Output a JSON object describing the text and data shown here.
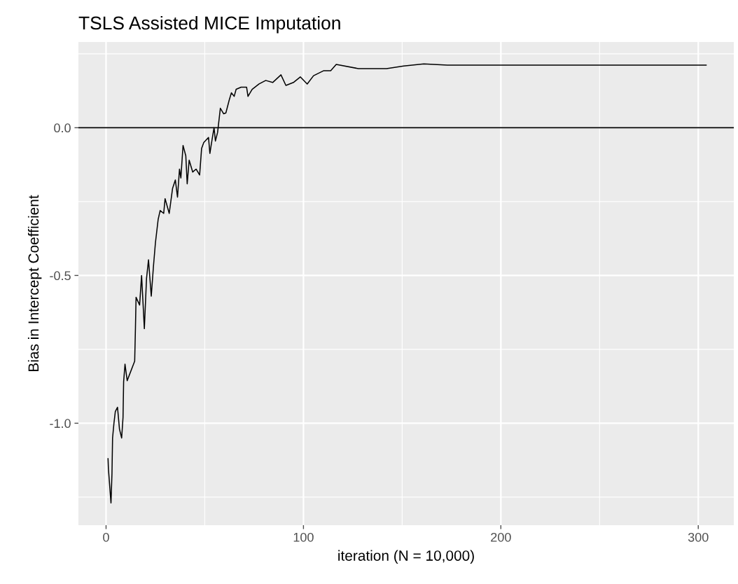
{
  "chart_data": {
    "type": "line",
    "title": "TSLS Assisted MICE Imputation",
    "xlabel": "iteration (N = 10,000)",
    "ylabel": "Bias in Intercept Coefficient",
    "x": [
      1.0,
      1.2,
      2.5,
      3.0,
      3.3,
      4.0,
      4.7,
      5.8,
      6.8,
      7.9,
      8.6,
      8.9,
      9.6,
      10.7,
      14.5,
      14.9,
      15.2,
      17.0,
      18.0,
      19.4,
      20.5,
      21.5,
      22.9,
      24.0,
      25.0,
      26.4,
      27.4,
      29.2,
      29.9,
      32.0,
      33.7,
      35.1,
      36.2,
      37.2,
      37.9,
      39.0,
      40.4,
      41.1,
      42.1,
      43.9,
      45.6,
      47.4,
      48.4,
      49.5,
      51.9,
      52.6,
      53.7,
      54.7,
      55.4,
      56.5,
      57.9,
      59.6,
      60.7,
      62.4,
      63.5,
      64.9,
      65.9,
      68.4,
      71.2,
      71.9,
      74.0,
      77.5,
      80.9,
      84.4,
      88.6,
      91.1,
      94.9,
      98.4,
      101.9,
      105.1,
      110.3,
      113.8,
      116.6,
      127.8,
      142.1,
      150.8,
      161.0,
      172.9,
      304
    ],
    "series": [
      {
        "color": "#000000",
        "values": [
          -1.12,
          -1.155,
          -1.27,
          -1.17,
          -1.05,
          -1.0,
          -0.96,
          -0.946,
          -1.02,
          -1.05,
          -0.98,
          -0.86,
          -0.8,
          -0.856,
          -0.79,
          -0.675,
          -0.574,
          -0.6,
          -0.5,
          -0.68,
          -0.51,
          -0.447,
          -0.57,
          -0.47,
          -0.39,
          -0.31,
          -0.28,
          -0.29,
          -0.24,
          -0.29,
          -0.205,
          -0.177,
          -0.235,
          -0.14,
          -0.17,
          -0.06,
          -0.095,
          -0.19,
          -0.11,
          -0.15,
          -0.14,
          -0.16,
          -0.07,
          -0.05,
          -0.033,
          -0.087,
          -0.04,
          0.0,
          -0.045,
          -0.016,
          0.066,
          0.047,
          0.05,
          0.094,
          0.118,
          0.106,
          0.13,
          0.137,
          0.137,
          0.106,
          0.13,
          0.148,
          0.16,
          0.153,
          0.179,
          0.143,
          0.153,
          0.172,
          0.148,
          0.176,
          0.193,
          0.193,
          0.214,
          0.2,
          0.2,
          0.209,
          0.216,
          0.212,
          0.212
        ]
      }
    ],
    "xlim": [
      -14,
      318
    ],
    "ylim": [
      -1.345,
      0.29
    ],
    "xticks": [
      0,
      100,
      200,
      300
    ],
    "yticks": [
      {
        "value": -1.0,
        "label": "-1.0"
      },
      {
        "value": -0.5,
        "label": "-0.5"
      },
      {
        "value": 0.0,
        "label": "0.0"
      }
    ],
    "ref_lines": [
      {
        "axis": "y",
        "value": 0.0,
        "color": "#000000"
      }
    ],
    "grid": true
  }
}
